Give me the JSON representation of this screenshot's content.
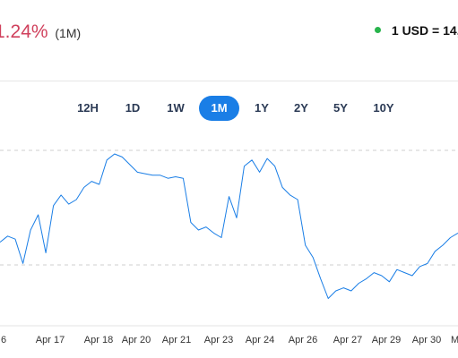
{
  "header": {
    "change_text": "1.24%",
    "change_period": "(1M)",
    "change_color": "#d0415d",
    "rate_text": "1 USD = 14,",
    "rate_dot_color": "#28b44c"
  },
  "timeframe_tabs": [
    {
      "label": "12H",
      "active": false
    },
    {
      "label": "1D",
      "active": false
    },
    {
      "label": "1W",
      "active": false
    },
    {
      "label": "1M",
      "active": true
    },
    {
      "label": "1Y",
      "active": false
    },
    {
      "label": "2Y",
      "active": false
    },
    {
      "label": "5Y",
      "active": false
    },
    {
      "label": "10Y",
      "active": false
    }
  ],
  "accent_color": "#1a7ee6",
  "chart_data": {
    "type": "line",
    "line_color": "#1a7ee6",
    "grid": "dashed horizontal",
    "x_labels": [
      "6",
      "Apr 17",
      "Apr 18",
      "Apr 20",
      "Apr 21",
      "Apr 23",
      "Apr 24",
      "Apr 26",
      "Apr 27",
      "Apr 29",
      "Apr 30",
      "May 2",
      "M"
    ],
    "series": [
      {
        "values": [
          42,
          46,
          44,
          28,
          50,
          60,
          35,
          66,
          73,
          67,
          70,
          78,
          82,
          80,
          96,
          100,
          98,
          93,
          88,
          87,
          86,
          86,
          84,
          85,
          84,
          55,
          50,
          52,
          48,
          45,
          72,
          58,
          92,
          96,
          88,
          97,
          92,
          78,
          73,
          70,
          40,
          32,
          18,
          5,
          10,
          12,
          10,
          15,
          18,
          22,
          20,
          16,
          24,
          22,
          20,
          26,
          28,
          36,
          40,
          45,
          48
        ]
      }
    ]
  }
}
